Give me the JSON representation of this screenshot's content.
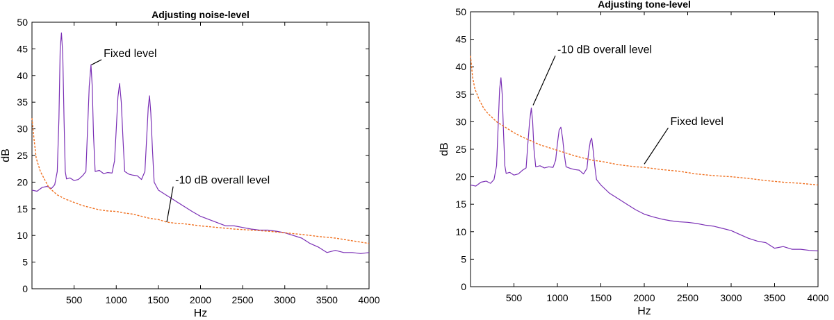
{
  "chart_data": [
    {
      "type": "line",
      "title": "Adjusting noise-level",
      "xlabel": "Hz",
      "ylabel": "dB",
      "xlim": [
        0,
        4000
      ],
      "ylim": [
        0,
        50
      ],
      "x_ticks": [
        500,
        1000,
        1500,
        2000,
        2500,
        3000,
        3500,
        4000
      ],
      "y_ticks": [
        0,
        5,
        10,
        15,
        20,
        25,
        30,
        35,
        40,
        45,
        50
      ],
      "grid": false,
      "series": [
        {
          "color": "#7a2fb5",
          "style": "solid",
          "points": [
            [
              0,
              18.5
            ],
            [
              60,
              18.3
            ],
            [
              120,
              19
            ],
            [
              180,
              19.2
            ],
            [
              230,
              18.8
            ],
            [
              270,
              19.5
            ],
            [
              300,
              22
            ],
            [
              320,
              32
            ],
            [
              335,
              45
            ],
            [
              350,
              48
            ],
            [
              365,
              44
            ],
            [
              380,
              32
            ],
            [
              395,
              22
            ],
            [
              410,
              20.6
            ],
            [
              450,
              20.8
            ],
            [
              500,
              20.3
            ],
            [
              550,
              20.5
            ],
            [
              600,
              21.2
            ],
            [
              640,
              22
            ],
            [
              660,
              30
            ],
            [
              680,
              38
            ],
            [
              700,
              42
            ],
            [
              715,
              38
            ],
            [
              730,
              29
            ],
            [
              750,
              22
            ],
            [
              800,
              22.2
            ],
            [
              850,
              21.6
            ],
            [
              900,
              21.8
            ],
            [
              950,
              21.7
            ],
            [
              980,
              24
            ],
            [
              1000,
              30
            ],
            [
              1020,
              36
            ],
            [
              1040,
              38.5
            ],
            [
              1060,
              35
            ],
            [
              1080,
              28
            ],
            [
              1100,
              22
            ],
            [
              1150,
              21.5
            ],
            [
              1200,
              21.3
            ],
            [
              1250,
              21.2
            ],
            [
              1300,
              20.5
            ],
            [
              1340,
              22
            ],
            [
              1360,
              28
            ],
            [
              1380,
              34
            ],
            [
              1395,
              36.2
            ],
            [
              1410,
              33
            ],
            [
              1430,
              26
            ],
            [
              1450,
              20
            ],
            [
              1500,
              18.5
            ],
            [
              1600,
              17.5
            ],
            [
              1700,
              16.5
            ],
            [
              1800,
              15.5
            ],
            [
              1900,
              14.5
            ],
            [
              2000,
              13.6
            ],
            [
              2100,
              13
            ],
            [
              2200,
              12.4
            ],
            [
              2300,
              11.8
            ],
            [
              2400,
              11.8
            ],
            [
              2500,
              11.5
            ],
            [
              2600,
              11.2
            ],
            [
              2700,
              11
            ],
            [
              2800,
              11
            ],
            [
              2900,
              10.8
            ],
            [
              3000,
              10.5
            ],
            [
              3100,
              10
            ],
            [
              3200,
              9.5
            ],
            [
              3300,
              8.5
            ],
            [
              3400,
              7.8
            ],
            [
              3500,
              6.8
            ],
            [
              3600,
              7.2
            ],
            [
              3700,
              6.8
            ],
            [
              3800,
              6.8
            ],
            [
              3900,
              6.6
            ],
            [
              4000,
              6.8
            ]
          ]
        },
        {
          "color": "#f07020",
          "style": "dashed",
          "points": [
            [
              0,
              32
            ],
            [
              25,
              28
            ],
            [
              50,
              24.5
            ],
            [
              100,
              22
            ],
            [
              150,
              20.5
            ],
            [
              200,
              19
            ],
            [
              300,
              17.6
            ],
            [
              400,
              16.8
            ],
            [
              500,
              16.2
            ],
            [
              600,
              15.6
            ],
            [
              700,
              15.2
            ],
            [
              800,
              14.8
            ],
            [
              900,
              14.6
            ],
            [
              1000,
              14.5
            ],
            [
              1100,
              14.2
            ],
            [
              1200,
              14
            ],
            [
              1300,
              13.6
            ],
            [
              1400,
              13.2
            ],
            [
              1500,
              13
            ],
            [
              1600,
              12.5
            ],
            [
              1700,
              12.3
            ],
            [
              1800,
              12.2
            ],
            [
              1900,
              12
            ],
            [
              2000,
              11.8
            ],
            [
              2200,
              11.5
            ],
            [
              2400,
              11.2
            ],
            [
              2600,
              11
            ],
            [
              2800,
              10.8
            ],
            [
              3000,
              10.5
            ],
            [
              3200,
              10.2
            ],
            [
              3400,
              9.8
            ],
            [
              3600,
              9.5
            ],
            [
              3800,
              9
            ],
            [
              4000,
              8.5
            ]
          ]
        }
      ],
      "annotations": [
        {
          "text": "Fixed level",
          "x": 850,
          "y": 43.5,
          "arrow_to": [
            705,
            42
          ]
        },
        {
          "text": "-10 dB overall level",
          "x": 1700,
          "y": 19.7,
          "arrow_to": [
            1600,
            12.5
          ]
        }
      ]
    },
    {
      "type": "line",
      "title": "Adjusting tone-level",
      "xlabel": "Hz",
      "ylabel": "dB",
      "xlim": [
        0,
        4000
      ],
      "ylim": [
        0,
        50
      ],
      "x_ticks": [
        500,
        1000,
        1500,
        2000,
        2500,
        3000,
        3500,
        4000
      ],
      "y_ticks": [
        0,
        5,
        10,
        15,
        20,
        25,
        30,
        35,
        40,
        45,
        50
      ],
      "grid": false,
      "series": [
        {
          "color": "#7a2fb5",
          "style": "solid",
          "points": [
            [
              0,
              18.5
            ],
            [
              60,
              18.3
            ],
            [
              120,
              19
            ],
            [
              180,
              19.2
            ],
            [
              230,
              18.8
            ],
            [
              270,
              19.5
            ],
            [
              300,
              22
            ],
            [
              320,
              30
            ],
            [
              335,
              36
            ],
            [
              350,
              38
            ],
            [
              365,
              35
            ],
            [
              380,
              28
            ],
            [
              395,
              22
            ],
            [
              410,
              20.6
            ],
            [
              450,
              20.8
            ],
            [
              500,
              20.3
            ],
            [
              550,
              20.5
            ],
            [
              600,
              21.2
            ],
            [
              640,
              21.6
            ],
            [
              660,
              26
            ],
            [
              680,
              30
            ],
            [
              700,
              32.5
            ],
            [
              715,
              30
            ],
            [
              730,
              25
            ],
            [
              750,
              21.8
            ],
            [
              800,
              22
            ],
            [
              850,
              21.6
            ],
            [
              900,
              21.8
            ],
            [
              950,
              21.7
            ],
            [
              980,
              23
            ],
            [
              1000,
              26
            ],
            [
              1020,
              28.5
            ],
            [
              1040,
              29
            ],
            [
              1060,
              27
            ],
            [
              1080,
              24
            ],
            [
              1100,
              21.8
            ],
            [
              1150,
              21.5
            ],
            [
              1200,
              21.3
            ],
            [
              1250,
              21.2
            ],
            [
              1300,
              20.5
            ],
            [
              1340,
              21.5
            ],
            [
              1360,
              24.5
            ],
            [
              1380,
              26.5
            ],
            [
              1395,
              27
            ],
            [
              1410,
              25
            ],
            [
              1430,
              22
            ],
            [
              1450,
              19.5
            ],
            [
              1500,
              18.5
            ],
            [
              1600,
              17
            ],
            [
              1700,
              16
            ],
            [
              1800,
              15
            ],
            [
              1900,
              14
            ],
            [
              2000,
              13.2
            ],
            [
              2100,
              12.7
            ],
            [
              2200,
              12.3
            ],
            [
              2300,
              12
            ],
            [
              2400,
              11.8
            ],
            [
              2500,
              11.7
            ],
            [
              2600,
              11.5
            ],
            [
              2700,
              11.2
            ],
            [
              2800,
              11
            ],
            [
              2900,
              10.6
            ],
            [
              3000,
              10.2
            ],
            [
              3100,
              9.5
            ],
            [
              3200,
              8.8
            ],
            [
              3300,
              8.3
            ],
            [
              3400,
              8
            ],
            [
              3500,
              7
            ],
            [
              3600,
              7.3
            ],
            [
              3700,
              6.8
            ],
            [
              3800,
              6.8
            ],
            [
              3900,
              6.6
            ],
            [
              4000,
              6.5
            ]
          ]
        },
        {
          "color": "#f07020",
          "style": "dashed",
          "points": [
            [
              0,
              42
            ],
            [
              25,
              38
            ],
            [
              50,
              36
            ],
            [
              100,
              34
            ],
            [
              150,
              32.5
            ],
            [
              200,
              31.5
            ],
            [
              300,
              30
            ],
            [
              400,
              29
            ],
            [
              500,
              28
            ],
            [
              600,
              27.2
            ],
            [
              700,
              26.5
            ],
            [
              800,
              25.8
            ],
            [
              900,
              25.3
            ],
            [
              1000,
              24.8
            ],
            [
              1100,
              24.3
            ],
            [
              1200,
              23.8
            ],
            [
              1300,
              23.4
            ],
            [
              1400,
              23
            ],
            [
              1500,
              22.8
            ],
            [
              1600,
              22.5
            ],
            [
              1700,
              22.2
            ],
            [
              1800,
              22
            ],
            [
              1900,
              21.8
            ],
            [
              2000,
              21.7
            ],
            [
              2200,
              21.3
            ],
            [
              2400,
              21
            ],
            [
              2600,
              20.5
            ],
            [
              2800,
              20.2
            ],
            [
              3000,
              20
            ],
            [
              3200,
              19.7
            ],
            [
              3400,
              19.3
            ],
            [
              3600,
              19
            ],
            [
              3800,
              18.8
            ],
            [
              4000,
              18.5
            ]
          ]
        }
      ],
      "annotations": [
        {
          "text": "-10 dB overall level",
          "x": 1000,
          "y": 42.5,
          "arrow_to": [
            720,
            33
          ]
        },
        {
          "text": "Fixed level",
          "x": 2300,
          "y": 29.4,
          "arrow_to": [
            2000,
            22.3
          ]
        }
      ]
    }
  ]
}
